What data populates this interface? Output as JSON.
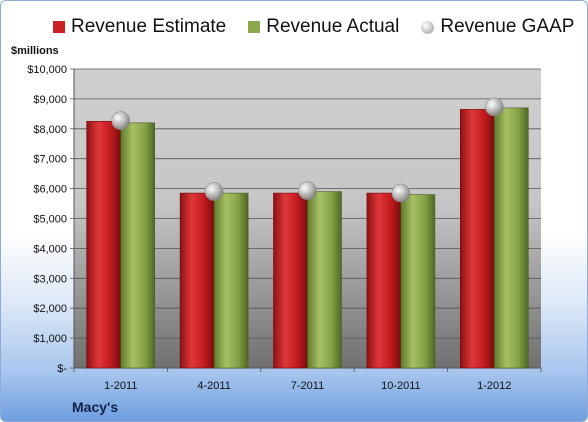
{
  "chart_data": {
    "type": "bar",
    "ylabel": "$millions",
    "footer_label": "Macy's",
    "categories": [
      "1-2011",
      "4-2011",
      "7-2011",
      "10-2011",
      "1-2012"
    ],
    "series": [
      {
        "name": "Revenue Estimate",
        "kind": "bar",
        "color": "#cc1f22",
        "values": [
          8250,
          5850,
          5850,
          5850,
          8650
        ]
      },
      {
        "name": "Revenue Actual",
        "kind": "bar",
        "color": "#8caa4c",
        "values": [
          8200,
          5850,
          5900,
          5800,
          8700
        ]
      },
      {
        "name": "Revenue GAAP",
        "kind": "marker",
        "color": "#c0c0c0",
        "values": [
          8270,
          5900,
          5930,
          5850,
          8730
        ]
      }
    ],
    "ylim": [
      0,
      10000
    ],
    "yticks": [
      0,
      1000,
      2000,
      3000,
      4000,
      5000,
      6000,
      7000,
      8000,
      9000,
      10000
    ],
    "ytick_labels": [
      "$-",
      "$1,000",
      "$2,000",
      "$3,000",
      "$4,000",
      "$5,000",
      "$6,000",
      "$7,000",
      "$8,000",
      "$9,000",
      "$10,000"
    ],
    "grid": true,
    "legend_position": "top"
  }
}
